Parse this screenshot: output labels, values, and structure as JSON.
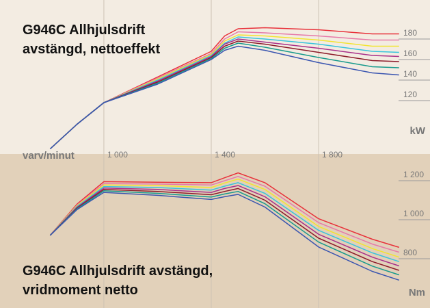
{
  "chart_data": [
    {
      "type": "line",
      "title": [
        "G946C Allhjulsdrift",
        "avstängd, nettoeffekt"
      ],
      "xlabel": "varv/minut",
      "ylabel": "kW",
      "x": [
        800,
        900,
        1000,
        1200,
        1400,
        1450,
        1500,
        1600,
        1800,
        2000,
        2100
      ],
      "xlim": [
        613,
        2215
      ],
      "xticks": [
        {
          "value": 1000,
          "label": "1 000"
        },
        {
          "value": 1400,
          "label": "1 400"
        },
        {
          "value": 1800,
          "label": "1 800"
        }
      ],
      "ylim": [
        68,
        218
      ],
      "yticks": [
        120,
        140,
        160,
        180
      ],
      "grid": true,
      "series": [
        {
          "color": "#e8313a",
          "values": [
            73,
            97,
            118,
            143,
            168,
            183,
            190,
            191,
            189,
            185,
            185
          ]
        },
        {
          "color": "#e67aa8",
          "values": [
            73,
            97,
            118,
            142,
            166,
            180,
            187,
            186,
            183,
            179,
            179
          ]
        },
        {
          "color": "#f2e431",
          "values": [
            73,
            97,
            118,
            141,
            165,
            178,
            184,
            183,
            179,
            173,
            173
          ]
        },
        {
          "color": "#38c4dc",
          "values": [
            73,
            97,
            118,
            140,
            164,
            176,
            182,
            180,
            175,
            168,
            167
          ]
        },
        {
          "color": "#a8308a",
          "values": [
            73,
            97,
            118,
            139,
            163,
            175,
            180,
            177,
            171,
            164,
            163
          ]
        },
        {
          "color": "#8c1b2a",
          "values": [
            73,
            97,
            118,
            138,
            162,
            173,
            178,
            175,
            167,
            159,
            158
          ]
        },
        {
          "color": "#179a8c",
          "values": [
            73,
            97,
            118,
            137,
            161,
            171,
            176,
            172,
            162,
            153,
            152
          ]
        },
        {
          "color": "#3a55b0",
          "values": [
            73,
            97,
            118,
            136,
            160,
            169,
            173,
            169,
            157,
            147,
            145
          ]
        }
      ]
    },
    {
      "type": "line",
      "title": [
        "G946C Allhjulsdrift avstängd,",
        "vridmoment netto"
      ],
      "ylabel": "Nm",
      "x": [
        800,
        900,
        1000,
        1200,
        1400,
        1450,
        1500,
        1600,
        1800,
        2000,
        2100
      ],
      "xlim": [
        613,
        2215
      ],
      "ylim": [
        547,
        1337
      ],
      "yticks": [
        800,
        {
          "value": 1000,
          "label": "1 000"
        },
        {
          "value": 1200,
          "label": "1 200"
        }
      ],
      "series": [
        {
          "color": "#e8313a",
          "values": [
            920,
            1080,
            1195,
            1192,
            1190,
            1215,
            1240,
            1190,
            1005,
            900,
            858
          ]
        },
        {
          "color": "#e67aa8",
          "values": [
            920,
            1075,
            1185,
            1183,
            1178,
            1200,
            1222,
            1172,
            985,
            875,
            833
          ]
        },
        {
          "color": "#f2e431",
          "values": [
            920,
            1072,
            1178,
            1175,
            1165,
            1188,
            1208,
            1155,
            965,
            852,
            808
          ]
        },
        {
          "color": "#38c4dc",
          "values": [
            920,
            1068,
            1170,
            1165,
            1152,
            1172,
            1190,
            1135,
            945,
            830,
            785
          ]
        },
        {
          "color": "#a8308a",
          "values": [
            920,
            1064,
            1162,
            1155,
            1140,
            1160,
            1175,
            1118,
            925,
            808,
            763
          ]
        },
        {
          "color": "#8c1b2a",
          "values": [
            920,
            1060,
            1155,
            1145,
            1128,
            1145,
            1160,
            1100,
            905,
            785,
            740
          ]
        },
        {
          "color": "#179a8c",
          "values": [
            920,
            1056,
            1148,
            1135,
            1116,
            1132,
            1145,
            1082,
            885,
            762,
            717
          ]
        },
        {
          "color": "#3a55b0",
          "values": [
            920,
            1052,
            1140,
            1125,
            1104,
            1118,
            1130,
            1065,
            860,
            735,
            690
          ]
        }
      ]
    }
  ]
}
